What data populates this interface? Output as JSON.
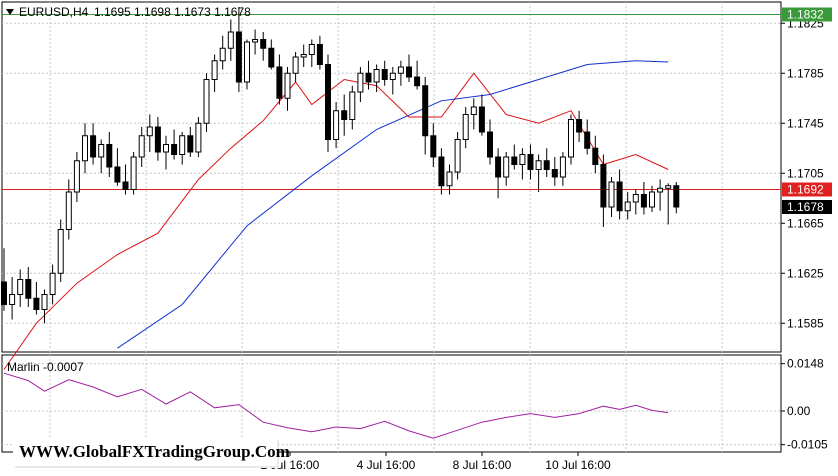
{
  "header": {
    "symbol": "EURUSD,H4",
    "ohlc": "1.1695 1.1698 1.1673 1.1678"
  },
  "indicator": {
    "label": "Marlin -0.0007"
  },
  "watermark": "WWW.GlobalFXTradingGroup.Com",
  "levels": [
    {
      "name": "green-level",
      "value": 1.1832,
      "label": "1.1832",
      "color": "#3a9a3a"
    },
    {
      "name": "red-level",
      "value": 1.1692,
      "label": "1.1692",
      "color": "#e02020"
    },
    {
      "name": "current-price",
      "value": 1.1678,
      "label": "1.1678",
      "color": "#000000"
    }
  ],
  "chart_data": [
    {
      "type": "candlestick",
      "title": "EURUSD,H4",
      "y_ticks": [
        "1.1825",
        "1.1785",
        "1.1745",
        "1.1705",
        "1.1665",
        "1.1625",
        "1.1585"
      ],
      "x_ticks": [
        "2 Jul 16:00",
        "4 Jul 16:00",
        "8 Jul 16:00",
        "10 Jul 16:00"
      ],
      "ylim": [
        1.1562,
        1.1842
      ],
      "grid": true,
      "ohlc": [
        [
          1.1618,
          1.1645,
          1.1595,
          1.16
        ],
        [
          1.16,
          1.1622,
          1.1588,
          1.1608
        ],
        [
          1.1608,
          1.1628,
          1.1598,
          1.162
        ],
        [
          1.162,
          1.163,
          1.1598,
          1.1605
        ],
        [
          1.1605,
          1.1618,
          1.1592,
          1.1596
        ],
        [
          1.1596,
          1.1612,
          1.1585,
          1.1608
        ],
        [
          1.1608,
          1.1632,
          1.16,
          1.1625
        ],
        [
          1.1625,
          1.1668,
          1.1618,
          1.166
        ],
        [
          1.166,
          1.17,
          1.1652,
          1.169
        ],
        [
          1.169,
          1.1722,
          1.1682,
          1.1715
        ],
        [
          1.1715,
          1.1745,
          1.1705,
          1.1735
        ],
        [
          1.1735,
          1.1745,
          1.1712,
          1.1718
        ],
        [
          1.1718,
          1.1732,
          1.1705,
          1.1728
        ],
        [
          1.1728,
          1.1738,
          1.1702,
          1.171
        ],
        [
          1.171,
          1.1725,
          1.1695,
          1.1698
        ],
        [
          1.1698,
          1.1712,
          1.1688,
          1.1692
        ],
        [
          1.1692,
          1.1722,
          1.1688,
          1.1718
        ],
        [
          1.1718,
          1.1742,
          1.171,
          1.1735
        ],
        [
          1.1735,
          1.1752,
          1.1722,
          1.1742
        ],
        [
          1.1742,
          1.175,
          1.1715,
          1.1722
        ],
        [
          1.1722,
          1.1735,
          1.1708,
          1.1728
        ],
        [
          1.1728,
          1.174,
          1.1716,
          1.172
        ],
        [
          1.172,
          1.1738,
          1.1712,
          1.1735
        ],
        [
          1.1735,
          1.1742,
          1.1718,
          1.1722
        ],
        [
          1.1722,
          1.175,
          1.1718,
          1.1745
        ],
        [
          1.1745,
          1.1785,
          1.1738,
          1.178
        ],
        [
          1.178,
          1.18,
          1.177,
          1.1795
        ],
        [
          1.1795,
          1.1815,
          1.1788,
          1.1805
        ],
        [
          1.1805,
          1.1828,
          1.1795,
          1.1818
        ],
        [
          1.1818,
          1.1838,
          1.177,
          1.1778
        ],
        [
          1.1778,
          1.1812,
          1.1772,
          1.181
        ],
        [
          1.181,
          1.182,
          1.18,
          1.1812
        ],
        [
          1.1812,
          1.1818,
          1.1795,
          1.1805
        ],
        [
          1.1805,
          1.1812,
          1.1788,
          1.179
        ],
        [
          1.179,
          1.18,
          1.176,
          1.1765
        ],
        [
          1.1765,
          1.179,
          1.1755,
          1.1785
        ],
        [
          1.1785,
          1.1802,
          1.1778,
          1.1798
        ],
        [
          1.1798,
          1.1808,
          1.179,
          1.18
        ],
        [
          1.18,
          1.1812,
          1.179,
          1.1808
        ],
        [
          1.1808,
          1.1815,
          1.1788,
          1.1792
        ],
        [
          1.1792,
          1.18,
          1.1722,
          1.1732
        ],
        [
          1.1732,
          1.1762,
          1.1725,
          1.1755
        ],
        [
          1.1755,
          1.1768,
          1.1735,
          1.1748
        ],
        [
          1.1748,
          1.1775,
          1.174,
          1.177
        ],
        [
          1.177,
          1.179,
          1.1762,
          1.1785
        ],
        [
          1.1785,
          1.1795,
          1.1772,
          1.1778
        ],
        [
          1.1778,
          1.1792,
          1.177,
          1.1788
        ],
        [
          1.1788,
          1.1795,
          1.1775,
          1.178
        ],
        [
          1.178,
          1.179,
          1.1768,
          1.1785
        ],
        [
          1.1785,
          1.1795,
          1.1775,
          1.179
        ],
        [
          1.179,
          1.18,
          1.1778,
          1.1782
        ],
        [
          1.1782,
          1.1795,
          1.1772,
          1.1775
        ],
        [
          1.1775,
          1.1782,
          1.172,
          1.1735
        ],
        [
          1.1735,
          1.1745,
          1.171,
          1.1718
        ],
        [
          1.1718,
          1.1725,
          1.1688,
          1.1695
        ],
        [
          1.1695,
          1.1712,
          1.1688,
          1.1706
        ],
        [
          1.1706,
          1.1738,
          1.17,
          1.1732
        ],
        [
          1.1732,
          1.1758,
          1.1725,
          1.1752
        ],
        [
          1.1752,
          1.1765,
          1.174,
          1.1758
        ],
        [
          1.1758,
          1.1768,
          1.1735,
          1.1738
        ],
        [
          1.1738,
          1.1748,
          1.1712,
          1.1718
        ],
        [
          1.1718,
          1.1725,
          1.1685,
          1.1702
        ],
        [
          1.1702,
          1.1722,
          1.1695,
          1.1718
        ],
        [
          1.1718,
          1.1728,
          1.1708,
          1.1712
        ],
        [
          1.1712,
          1.1725,
          1.17,
          1.172
        ],
        [
          1.172,
          1.1728,
          1.17,
          1.1708
        ],
        [
          1.1708,
          1.172,
          1.169,
          1.1715
        ],
        [
          1.1715,
          1.1725,
          1.1702,
          1.1708
        ],
        [
          1.1708,
          1.1718,
          1.1695,
          1.1702
        ],
        [
          1.1702,
          1.1722,
          1.1695,
          1.1718
        ],
        [
          1.1718,
          1.1752,
          1.1712,
          1.1748
        ],
        [
          1.1748,
          1.1755,
          1.173,
          1.1738
        ],
        [
          1.1738,
          1.1748,
          1.172,
          1.1725
        ],
        [
          1.1725,
          1.1735,
          1.1705,
          1.1712
        ],
        [
          1.1712,
          1.172,
          1.1662,
          1.1678
        ],
        [
          1.1678,
          1.1702,
          1.167,
          1.1698
        ],
        [
          1.1698,
          1.1708,
          1.1668,
          1.1675
        ],
        [
          1.1675,
          1.169,
          1.1668,
          1.1682
        ],
        [
          1.1682,
          1.1692,
          1.1672,
          1.1688
        ],
        [
          1.1688,
          1.1698,
          1.1672,
          1.1678
        ],
        [
          1.1678,
          1.1695,
          1.1674,
          1.169
        ],
        [
          1.169,
          1.17,
          1.1675,
          1.1693
        ],
        [
          1.1693,
          1.1697,
          1.1664,
          1.1695
        ],
        [
          1.1695,
          1.1698,
          1.1673,
          1.1678
        ]
      ],
      "series": [
        {
          "name": "",
          "color": "#dd1111",
          "x": [
            0,
            4,
            9,
            14,
            19,
            24,
            28,
            32,
            36,
            38,
            42,
            46,
            50,
            54,
            58,
            62,
            66,
            70,
            74,
            78,
            82
          ],
          "values": [
            1.1548,
            1.1585,
            1.1617,
            1.164,
            1.1657,
            1.17,
            1.1725,
            1.1747,
            1.1778,
            1.176,
            1.178,
            1.1775,
            1.175,
            1.175,
            1.1785,
            1.1752,
            1.1745,
            1.1755,
            1.1712,
            1.172,
            1.1708
          ]
        },
        {
          "name": "",
          "color": "#1030cc",
          "x": [
            14,
            22,
            30,
            38,
            46,
            54,
            60,
            66,
            72,
            78,
            82
          ],
          "values": [
            1.1565,
            1.16,
            1.1663,
            1.1703,
            1.174,
            1.1763,
            1.1768,
            1.178,
            1.1792,
            1.1795,
            1.1794
          ]
        }
      ]
    },
    {
      "type": "line",
      "title": "Marlin -0.0007",
      "y_ticks": [
        "0.0148",
        "0.00",
        "-0.0105"
      ],
      "ylim": [
        -0.0128,
        0.0175
      ],
      "series": [
        {
          "name": "Marlin",
          "color": "#a020a0",
          "x": [
            0,
            3,
            5,
            8,
            11,
            14,
            17,
            20,
            23,
            26,
            29,
            32,
            35,
            38,
            41,
            44,
            47,
            50,
            53,
            56,
            59,
            62,
            65,
            68,
            71,
            74,
            76,
            78,
            80,
            82
          ],
          "values": [
            0.0118,
            0.0095,
            0.0062,
            0.0098,
            0.0075,
            0.0044,
            0.0068,
            0.0022,
            0.006,
            0.001,
            0.002,
            -0.0035,
            -0.0052,
            -0.0065,
            -0.005,
            -0.0055,
            -0.0032,
            -0.0062,
            -0.0085,
            -0.006,
            -0.0035,
            -0.002,
            -0.0008,
            -0.002,
            -0.0008,
            0.0015,
            0.0005,
            0.0018,
            0.0002,
            -0.0005
          ]
        }
      ]
    }
  ]
}
